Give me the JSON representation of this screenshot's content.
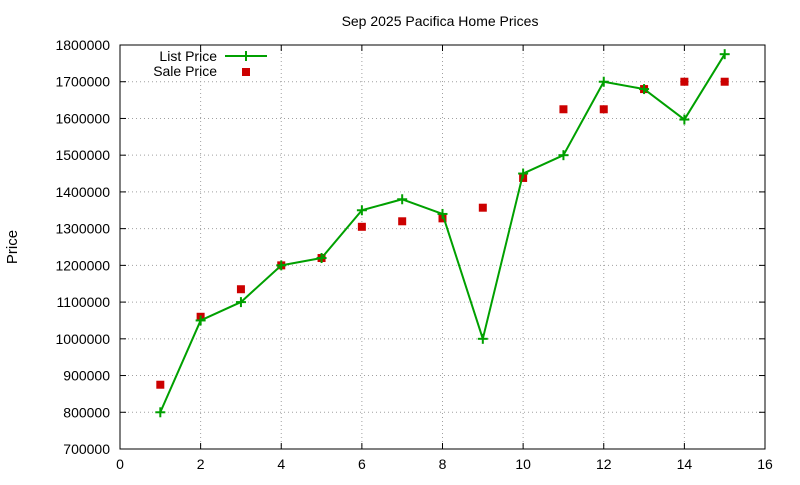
{
  "chart_data": {
    "type": "line",
    "title": "Sep 2025 Pacifica Home Prices",
    "xlabel": "",
    "ylabel": "Price",
    "xlim": [
      0,
      16
    ],
    "ylim": [
      700000,
      1800000
    ],
    "x_ticks": [
      "0",
      "2",
      "4",
      "6",
      "8",
      "10",
      "12",
      "14",
      "16"
    ],
    "y_ticks": [
      "700000",
      "800000",
      "900000",
      "1000000",
      "1100000",
      "1200000",
      "1300000",
      "1400000",
      "1500000",
      "1600000",
      "1700000",
      "1800000"
    ],
    "grid": true,
    "legend_position": "top-left",
    "series": [
      {
        "name": "List Price",
        "style": "line-with-plus-markers",
        "color": "#00a000",
        "x": [
          1,
          2,
          3,
          4,
          5,
          6,
          7,
          8,
          9,
          10,
          11,
          12,
          13,
          14,
          15
        ],
        "y": [
          800000,
          1050000,
          1100000,
          1200000,
          1220000,
          1350000,
          1380000,
          1340000,
          1000000,
          1450000,
          1500000,
          1700000,
          1680000,
          1597000,
          1775000
        ]
      },
      {
        "name": "Sale Price",
        "style": "square-markers",
        "color": "#cc0000",
        "x": [
          1,
          2,
          3,
          4,
          5,
          6,
          7,
          8,
          9,
          10,
          11,
          12,
          13,
          14,
          15
        ],
        "y": [
          875000,
          1060000,
          1135000,
          1200000,
          1220000,
          1305000,
          1320000,
          1328000,
          1357000,
          1438000,
          1625000,
          1625000,
          1680000,
          1700000,
          1700000
        ]
      }
    ]
  }
}
